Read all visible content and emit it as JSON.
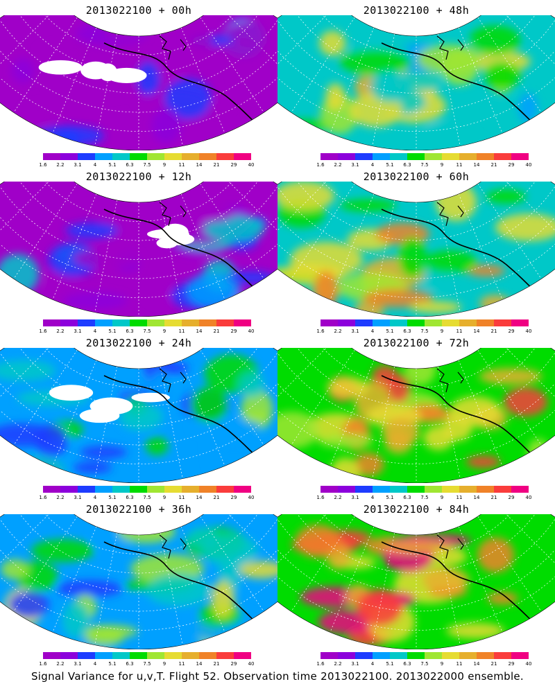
{
  "panels": [
    {
      "title": "2013022100 + 00h",
      "intensity": 0.0
    },
    {
      "title": "2013022100 + 48h",
      "intensity": 0.55
    },
    {
      "title": "2013022100 + 12h",
      "intensity": 0.15
    },
    {
      "title": "2013022100 + 60h",
      "intensity": 0.68
    },
    {
      "title": "2013022100 + 24h",
      "intensity": 0.28
    },
    {
      "title": "2013022100 + 72h",
      "intensity": 0.8
    },
    {
      "title": "2013022100 + 36h",
      "intensity": 0.4
    },
    {
      "title": "2013022100 + 84h",
      "intensity": 0.92
    }
  ],
  "colorbar": {
    "colors": [
      "#a000c8",
      "#8c00dc",
      "#1e3cff",
      "#00a0ff",
      "#00c8c8",
      "#00dc00",
      "#a0e632",
      "#e6dc32",
      "#e6af2d",
      "#f08228",
      "#fa3c3c",
      "#f00082"
    ],
    "ticks": [
      "1.6",
      "2.2",
      "3.1",
      "4",
      "5.1",
      "6.3",
      "7.5",
      "9",
      "11",
      "14",
      "21",
      "29",
      "40"
    ]
  },
  "caption": "Signal Variance for u,v,T. Flight 52. Observation time 2013022100. 2013022000 ensemble."
}
